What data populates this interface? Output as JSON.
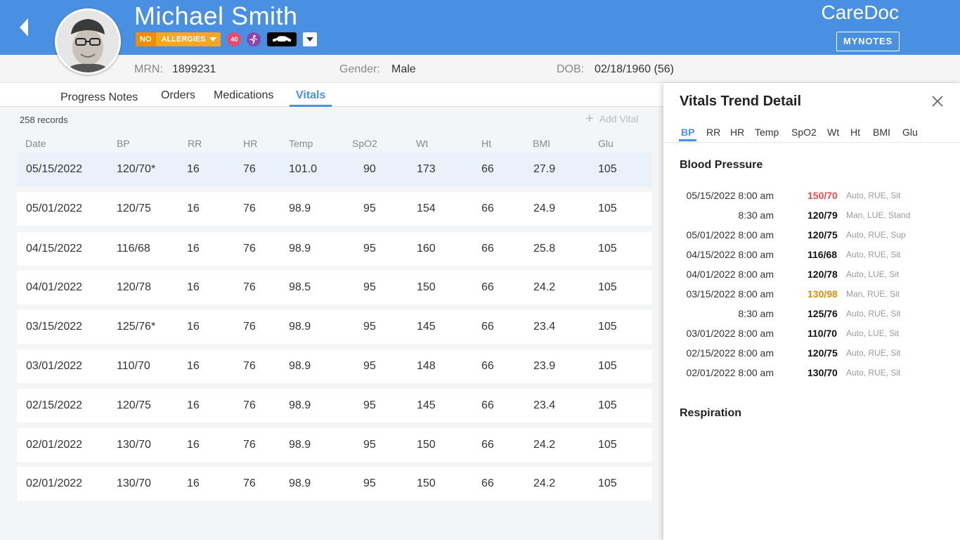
{
  "patient": {
    "name": "Michael Smith",
    "allergy_no": "NO",
    "allergy_label": "ALLERGIES",
    "alert_count": "40",
    "mrn_label": "MRN:",
    "mrn": "1899231",
    "gender_label": "Gender:",
    "gender": "Male",
    "dob_label": "DOB:",
    "dob": "02/18/1960 (56)"
  },
  "brand": "CareDoc",
  "mynotes_label": "MYNOTES",
  "tabs": [
    {
      "label": "Progress Notes"
    },
    {
      "label": "Orders"
    },
    {
      "label": "Medications"
    },
    {
      "label": "Vitals"
    }
  ],
  "records_count": "258 records",
  "add_vital_label": "Add Vital",
  "columns": [
    "Date",
    "BP",
    "RR",
    "HR",
    "Temp",
    "SpO2",
    "Wt",
    "Ht",
    "BMI",
    "Glu"
  ],
  "rows": [
    [
      "05/15/2022",
      "120/70*",
      "16",
      "76",
      "101.0",
      "90",
      "173",
      "66",
      "27.9",
      "105"
    ],
    [
      "05/01/2022",
      "120/75",
      "16",
      "76",
      "98.9",
      "95",
      "154",
      "66",
      "24.9",
      "105"
    ],
    [
      "04/15/2022",
      "116/68",
      "16",
      "76",
      "98.9",
      "95",
      "160",
      "66",
      "25.8",
      "105"
    ],
    [
      "04/01/2022",
      "120/78",
      "16",
      "76",
      "98.5",
      "95",
      "150",
      "66",
      "24.2",
      "105"
    ],
    [
      "03/15/2022",
      "125/76*",
      "16",
      "76",
      "98.9",
      "95",
      "145",
      "66",
      "23.4",
      "105"
    ],
    [
      "03/01/2022",
      "110/70",
      "16",
      "76",
      "98.9",
      "95",
      "148",
      "66",
      "23.9",
      "105"
    ],
    [
      "02/15/2022",
      "120/75",
      "16",
      "76",
      "98.9",
      "95",
      "145",
      "66",
      "23.4",
      "105"
    ],
    [
      "02/01/2022",
      "130/70",
      "16",
      "76",
      "98.9",
      "95",
      "150",
      "66",
      "24.2",
      "105"
    ],
    [
      "02/01/2022",
      "130/70",
      "16",
      "76",
      "98.9",
      "95",
      "150",
      "66",
      "24.2",
      "105"
    ]
  ],
  "panel": {
    "title": "Vitals Trend Detail",
    "tabs": [
      "BP",
      "RR",
      "HR",
      "Temp",
      "SpO2",
      "Wt",
      "Ht",
      "BMI",
      "Glu"
    ],
    "bp_title": "Blood Pressure",
    "bp_entries": [
      {
        "date": "05/15/2022 8:00 am",
        "value": "150/70",
        "method": "Auto, RUE, Sit",
        "status": "high"
      },
      {
        "date": "8:30 am",
        "value": "120/79",
        "method": "Man, LUE, Stand",
        "status": "normal"
      },
      {
        "date": "05/01/2022 8:00 am",
        "value": "120/75",
        "method": "Auto, RUE, Sup",
        "status": "normal"
      },
      {
        "date": "04/15/2022 8:00 am",
        "value": "116/68",
        "method": "Auto, RUE, Sit",
        "status": "normal"
      },
      {
        "date": "04/01/2022 8:00 am",
        "value": "120/78",
        "method": "Auto, LUE, Sit",
        "status": "normal"
      },
      {
        "date": "03/15/2022 8:00 am",
        "value": "130/98",
        "method": "Man, RUE, Sit",
        "status": "warn"
      },
      {
        "date": "8:30 am",
        "value": "125/76",
        "method": "Auto, RUE, Sit",
        "status": "normal"
      },
      {
        "date": "03/01/2022 8:00 am",
        "value": "110/70",
        "method": "Auto, LUE, Sit",
        "status": "normal"
      },
      {
        "date": "02/15/2022 8:00 am",
        "value": "120/75",
        "method": "Auto, RUE, Sit",
        "status": "normal"
      },
      {
        "date": "02/01/2022 8:00 am",
        "value": "130/70",
        "method": "Auto, RUE, Sit",
        "status": "normal"
      }
    ],
    "resp_title": "Respiration"
  },
  "colors": {
    "header": "#4a90e2",
    "accent": "#4a90e2",
    "allergy": "#f5a623",
    "high": "#e74c4c",
    "warn": "#d99010"
  },
  "icons": {
    "back": "chevron-left-icon",
    "fall_risk": "fall-risk-icon",
    "transport": "car-icon",
    "close": "close-icon",
    "add": "plus-icon"
  }
}
